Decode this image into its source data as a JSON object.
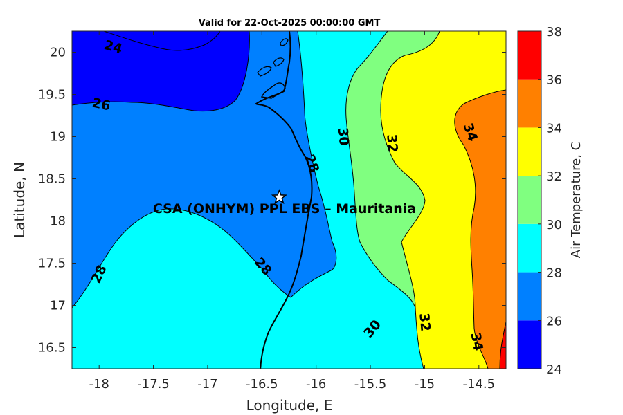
{
  "chart_data": {
    "type": "contour",
    "title": "Valid for 22-Oct-2025 00:00:00 GMT",
    "xlabel": "Longitude, E",
    "ylabel": "Latitude, N",
    "xlim": [
      -18.25,
      -14.25
    ],
    "ylim": [
      16.25,
      20.25
    ],
    "xticks": [
      "-18",
      "-17.5",
      "-17",
      "-16.5",
      "-16",
      "-15.5",
      "-15",
      "-14.5"
    ],
    "xtick_values": [
      -18,
      -17.5,
      -17,
      -16.5,
      -16,
      -15.5,
      -15,
      -14.5
    ],
    "yticks": [
      "16.5",
      "17",
      "17.5",
      "18",
      "18.5",
      "19",
      "19.5",
      "20"
    ],
    "ytick_values": [
      16.5,
      17,
      17.5,
      18,
      18.5,
      19,
      19.5,
      20
    ],
    "colorbar": {
      "label": "Air Temperature, C",
      "levels": [
        24,
        26,
        28,
        30,
        32,
        34,
        36,
        38
      ],
      "tick_labels": [
        "24",
        "26",
        "28",
        "30",
        "32",
        "34",
        "36",
        "38"
      ],
      "colors": [
        "#0000ff",
        "#0080ff",
        "#00ffff",
        "#80ff80",
        "#ffff00",
        "#ff8000",
        "#ff0000",
        "#800000"
      ]
    },
    "contour_labels": [
      {
        "text": "24",
        "lon": -17.87,
        "lat": 20.06,
        "rotate": 15
      },
      {
        "text": "26",
        "lon": -17.98,
        "lat": 19.38,
        "rotate": 12
      },
      {
        "text": "28",
        "lon": -16.04,
        "lat": 18.68,
        "rotate": 70
      },
      {
        "text": "30",
        "lon": -15.75,
        "lat": 19.0,
        "rotate": 85
      },
      {
        "text": "32",
        "lon": -15.3,
        "lat": 18.92,
        "rotate": 85
      },
      {
        "text": "34",
        "lon": -14.58,
        "lat": 19.05,
        "rotate": 70
      },
      {
        "text": "28",
        "lon": -18.0,
        "lat": 17.37,
        "rotate": -65
      },
      {
        "text": "28",
        "lon": -16.49,
        "lat": 17.46,
        "rotate": 50
      },
      {
        "text": "30",
        "lon": -15.48,
        "lat": 16.72,
        "rotate": -50
      },
      {
        "text": "32",
        "lon": -15.0,
        "lat": 16.8,
        "rotate": 85
      },
      {
        "text": "34",
        "lon": -14.52,
        "lat": 16.57,
        "rotate": 80
      }
    ],
    "station": {
      "name": "CSA (ONHYM) PPL EBS  – Mauritania",
      "lon": -16.34,
      "lat": 18.28,
      "marker": "white-star"
    },
    "grid": false
  }
}
